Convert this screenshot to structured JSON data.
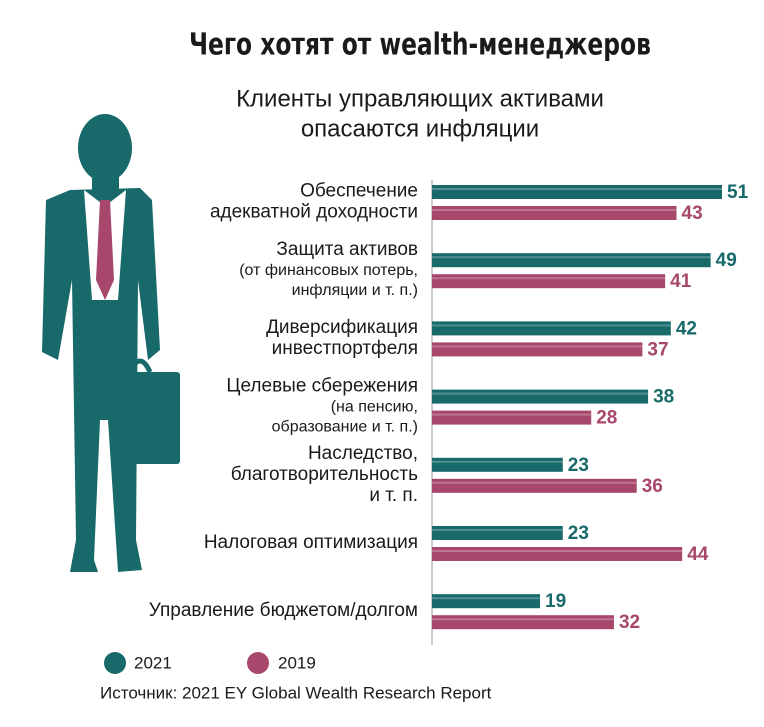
{
  "chart_data": {
    "type": "bar",
    "orientation": "horizontal",
    "title": "Чего хотят от wealth-менеджеров",
    "subtitle": [
      "Клиенты управляющих активами",
      "опасаются инфляции"
    ],
    "categories": [
      {
        "lines": [
          "Обеспечение",
          "адекватной доходности"
        ],
        "sub": []
      },
      {
        "lines": [
          "Защита активов"
        ],
        "sub": [
          "(от финансовых потерь,",
          "инфляции и т. п.)"
        ]
      },
      {
        "lines": [
          "Диверсификация",
          "инвестпортфеля"
        ],
        "sub": []
      },
      {
        "lines": [
          "Целевые сбережения"
        ],
        "sub": [
          "(на пенсию,",
          "образование и т. п.)"
        ]
      },
      {
        "lines": [
          "Наследство,",
          "благотворительность",
          "и т. п."
        ],
        "sub": []
      },
      {
        "lines": [
          "Налоговая оптимизация"
        ],
        "sub": []
      },
      {
        "lines": [
          "Управление бюджетом/долгом"
        ],
        "sub": []
      }
    ],
    "series": [
      {
        "name": "2021",
        "color": "#17696a",
        "values": [
          51,
          49,
          42,
          38,
          23,
          23,
          19
        ]
      },
      {
        "name": "2019",
        "color": "#a6476b",
        "values": [
          43,
          41,
          37,
          28,
          36,
          44,
          32
        ]
      }
    ],
    "source": "Источник: 2021 EY Global Wealth Research Report"
  }
}
